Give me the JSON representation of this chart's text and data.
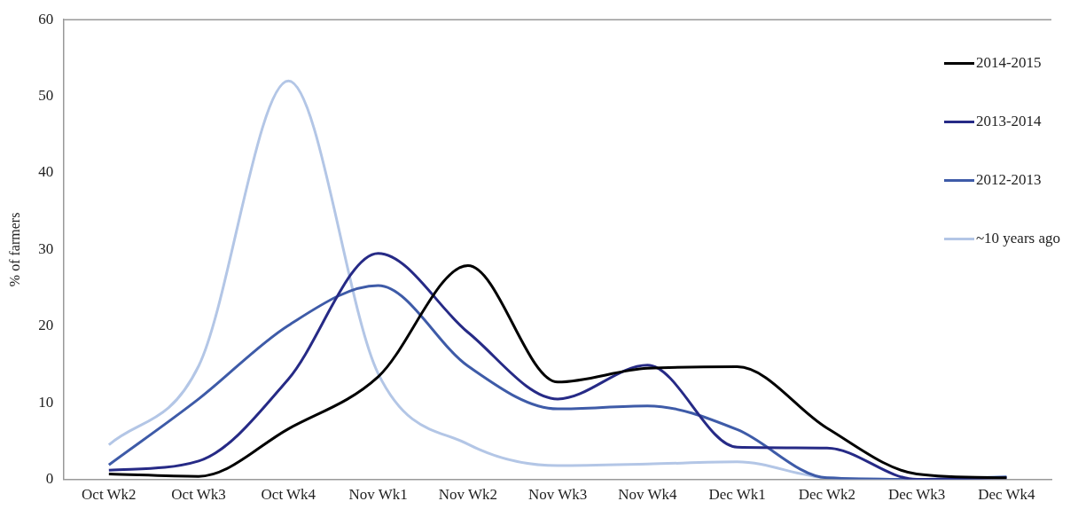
{
  "chart_data": {
    "type": "line",
    "ylabel": "% of farmers",
    "categories": [
      "Oct Wk2",
      "Oct Wk3",
      "Oct Wk4",
      "Nov Wk1",
      "Nov Wk2",
      "Nov Wk3",
      "Nov Wk4",
      "Dec Wk1",
      "Dec Wk2",
      "Dec Wk3",
      "Dec Wk4"
    ],
    "series": [
      {
        "name": "2014-2015",
        "color": "#000000",
        "values": [
          0.7,
          0.4,
          6.6,
          13.4,
          27.9,
          12.7,
          14.5,
          14.7,
          6.7,
          0.7,
          0.2
        ]
      },
      {
        "name": "2013-2014",
        "color": "#262a86",
        "values": [
          1.2,
          2.4,
          13.1,
          29.5,
          19.2,
          10.5,
          14.9,
          4.2,
          4.1,
          0,
          0.2
        ]
      },
      {
        "name": "2012-2013",
        "color": "#3e5ba8",
        "values": [
          1.9,
          10.5,
          20.1,
          25.3,
          14.8,
          9.2,
          9.6,
          6.5,
          0.2,
          0,
          0.3
        ]
      },
      {
        "name": "~10 years ago",
        "color": "#b3c6e6",
        "values": [
          4.5,
          14.8,
          52,
          13.8,
          4.6,
          1.8,
          2,
          2.3,
          0.2,
          0,
          0.4
        ]
      }
    ],
    "ylim": [
      0,
      60
    ],
    "yticks": [
      0,
      10,
      20,
      30,
      40,
      50,
      60
    ],
    "grid": false,
    "legend": "top right",
    "marker": "none",
    "line_style": "solid"
  }
}
